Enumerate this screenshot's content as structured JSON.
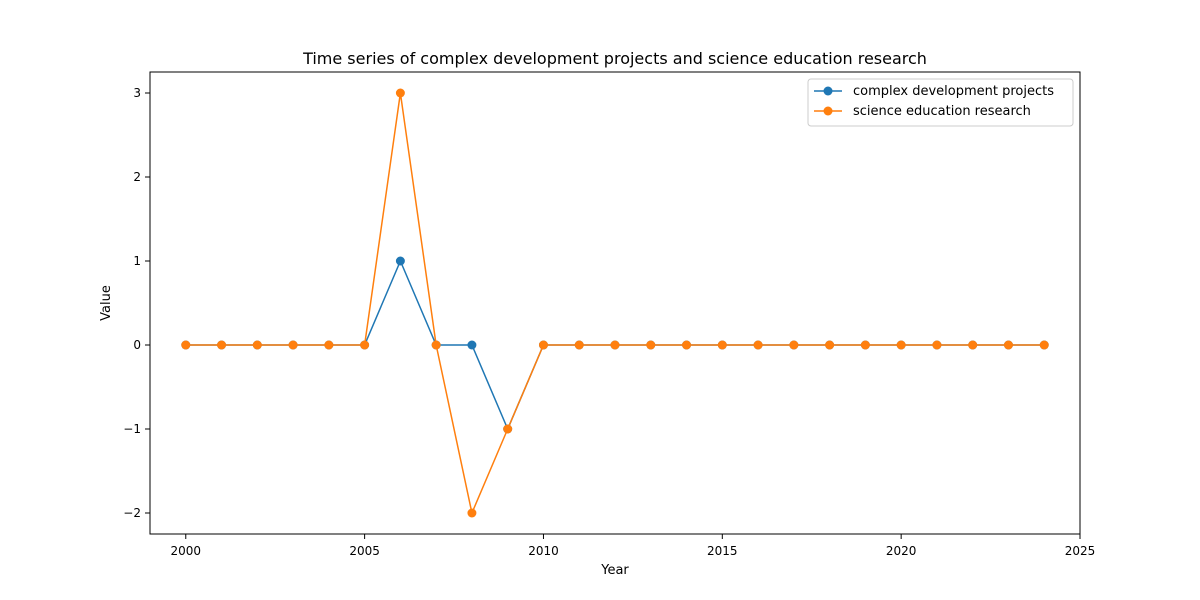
{
  "chart_data": {
    "type": "line",
    "title": "Time series of complex development projects and science education research",
    "xlabel": "Year",
    "ylabel": "Value",
    "xlim": [
      1999,
      2025
    ],
    "ylim": [
      -2.25,
      3.25
    ],
    "xticks": [
      2000,
      2005,
      2010,
      2015,
      2020,
      2025
    ],
    "yticks": [
      -2,
      -1,
      0,
      1,
      2,
      3
    ],
    "grid": false,
    "legend_position": "top-right",
    "x": [
      2000,
      2001,
      2002,
      2003,
      2004,
      2005,
      2006,
      2007,
      2008,
      2009,
      2010,
      2011,
      2012,
      2013,
      2014,
      2015,
      2016,
      2017,
      2018,
      2019,
      2020,
      2021,
      2022,
      2023,
      2024
    ],
    "series": [
      {
        "name": "complex development projects",
        "color": "#1f77b4",
        "values": [
          0,
          0,
          0,
          0,
          0,
          0,
          1,
          0,
          0,
          -1,
          0,
          0,
          0,
          0,
          0,
          0,
          0,
          0,
          0,
          0,
          0,
          0,
          0,
          0,
          0
        ]
      },
      {
        "name": "science education research",
        "color": "#ff7f0e",
        "values": [
          0,
          0,
          0,
          0,
          0,
          0,
          3,
          0,
          -2,
          -1,
          0,
          0,
          0,
          0,
          0,
          0,
          0,
          0,
          0,
          0,
          0,
          0,
          0,
          0,
          0
        ]
      }
    ]
  }
}
